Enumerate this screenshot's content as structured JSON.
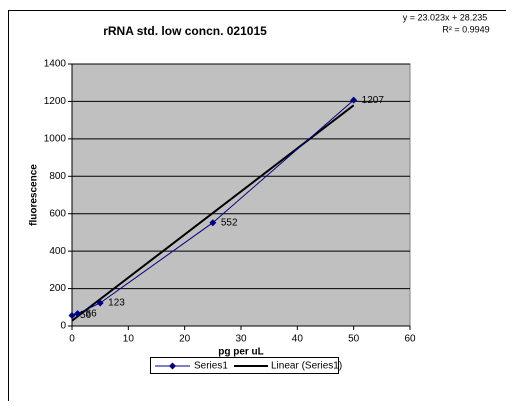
{
  "chart_data": {
    "type": "scatter",
    "title": "rRNA std. low concn. 021015",
    "x_label": "pg per uL",
    "y_label": "fluorescence",
    "x": [
      0,
      1,
      5,
      25,
      50
    ],
    "series": [
      {
        "name": "Series1",
        "color": "#000080",
        "values": [
          56,
          66,
          123,
          552,
          1207
        ]
      }
    ],
    "trendline": {
      "name": "Linear (Series1)",
      "color": "#000000",
      "slope": 23.023,
      "intercept": 28.235,
      "equation": "y = 23.023x + 28.235",
      "r_squared": "R² = 0.9949"
    },
    "xlim": [
      0,
      60
    ],
    "xticks": [
      0,
      10,
      20,
      30,
      40,
      50,
      60
    ],
    "ylim": [
      0,
      1400
    ],
    "yticks": [
      0,
      200,
      400,
      600,
      800,
      1000,
      1200,
      1400
    ],
    "grid": true,
    "legend": "bottom"
  }
}
